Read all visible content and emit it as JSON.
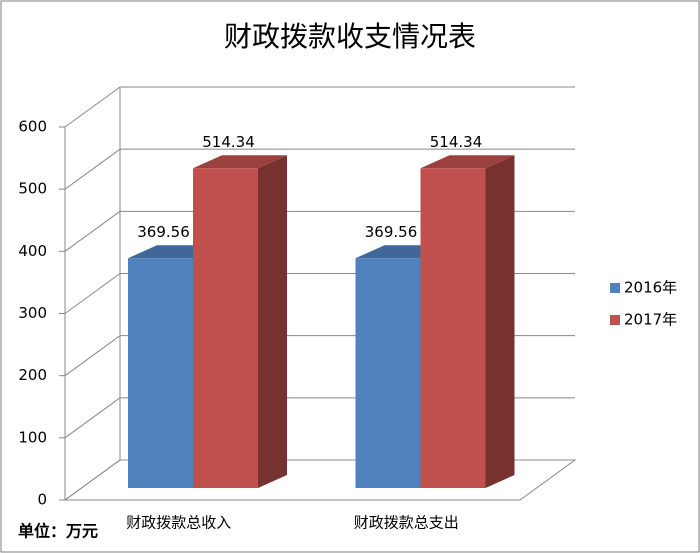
{
  "chart_data": {
    "type": "bar3d",
    "title": "财政拨款收支情况表",
    "categories": [
      "财政拨款总收入",
      "财政拨款总支出"
    ],
    "series": [
      {
        "name": "2016年",
        "color": "#4f81bd",
        "values": [
          369.56,
          369.56
        ]
      },
      {
        "name": "2017年",
        "color": "#c0504d",
        "values": [
          514.34,
          514.34
        ]
      }
    ],
    "ylim": [
      0,
      600
    ],
    "yticks": [
      0,
      100,
      200,
      300,
      400,
      500,
      600
    ],
    "grid": true,
    "legend": "right",
    "note": "单位：万元"
  }
}
